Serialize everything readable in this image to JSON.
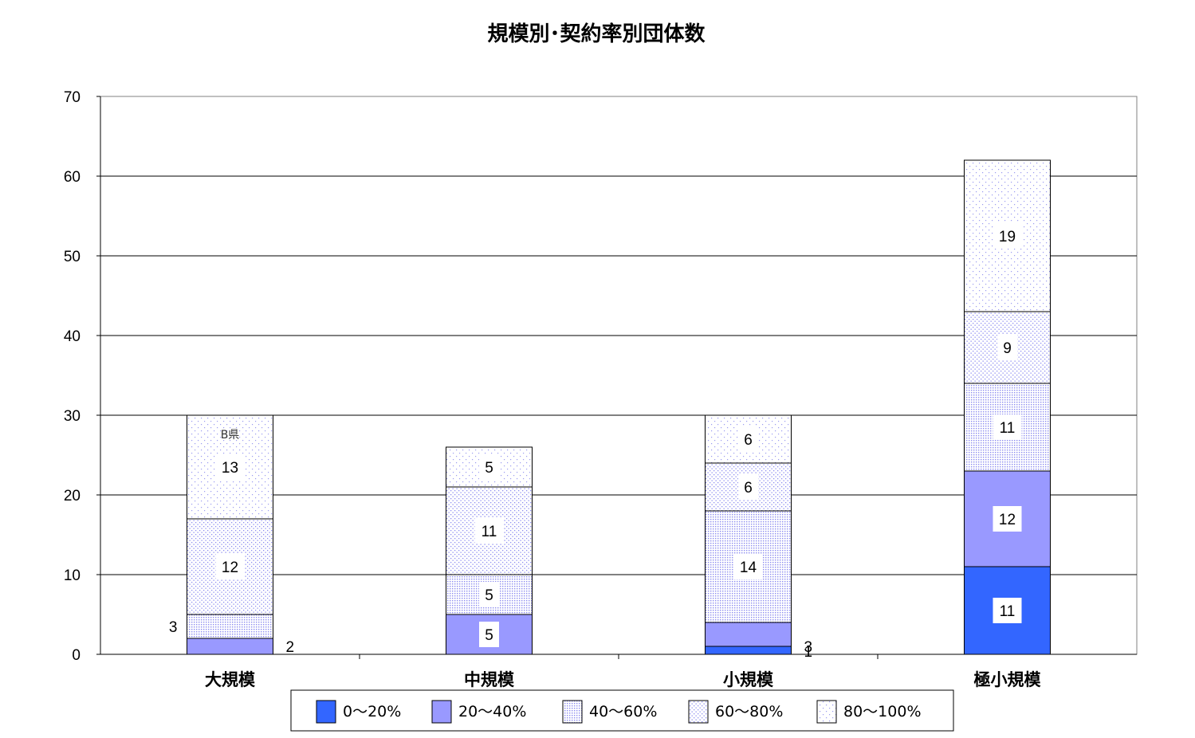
{
  "chart_data": {
    "type": "bar",
    "stacked": true,
    "title": "規模別･契約率別団体数",
    "xlabel": "",
    "ylabel": "",
    "ylim": [
      0,
      70
    ],
    "yticks": [
      0,
      10,
      20,
      30,
      40,
      50,
      60,
      70
    ],
    "grid": true,
    "legend_position": "bottom",
    "categories": [
      "大規模",
      "中規模",
      "小規模",
      "極小規模"
    ],
    "series": [
      {
        "name": "0～20%",
        "values": [
          0,
          0,
          1,
          11
        ],
        "color": "#3366ff",
        "pattern": "solid"
      },
      {
        "name": "20～40%",
        "values": [
          2,
          5,
          3,
          12
        ],
        "color": "#9999ff",
        "pattern": "solid"
      },
      {
        "name": "40～60%",
        "values": [
          3,
          5,
          14,
          11
        ],
        "color": "#9999ff",
        "pattern": "dense-dots"
      },
      {
        "name": "60～80%",
        "values": [
          12,
          11,
          6,
          9
        ],
        "color": "#9999ff",
        "pattern": "medium-dots"
      },
      {
        "name": "80～100%",
        "values": [
          13,
          5,
          6,
          19
        ],
        "color": "#9999ff",
        "pattern": "sparse-dots"
      }
    ],
    "annotations": [
      {
        "category": "大規模",
        "series": "80～100%",
        "text": "B県"
      }
    ]
  }
}
